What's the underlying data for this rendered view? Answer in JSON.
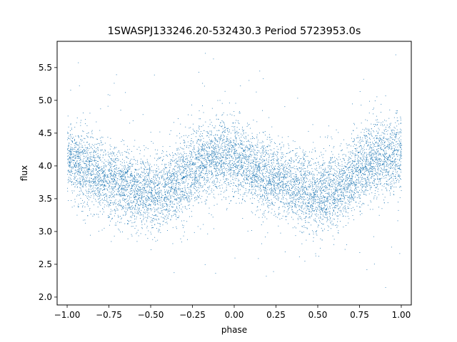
{
  "chart_data": {
    "type": "scatter",
    "title": "1SWASPJ133246.20-532430.3 Period 5723953.0s",
    "xlabel": "phase",
    "ylabel": "flux",
    "xlim": [
      -1.06,
      1.06
    ],
    "ylim": [
      1.88,
      5.9
    ],
    "xticks": [
      -1.0,
      -0.75,
      -0.5,
      -0.25,
      0.0,
      0.25,
      0.5,
      0.75,
      1.0
    ],
    "xtick_labels": [
      "−1.00",
      "−0.75",
      "−0.50",
      "−0.25",
      "0.00",
      "0.25",
      "0.50",
      "0.75",
      "1.00"
    ],
    "yticks": [
      2.0,
      2.5,
      3.0,
      3.5,
      4.0,
      4.5,
      5.0,
      5.5
    ],
    "ytick_labels": [
      "2.0",
      "2.5",
      "3.0",
      "3.5",
      "4.0",
      "4.5",
      "5.0",
      "5.5"
    ],
    "grid": false,
    "marker_color": "#1f77b4",
    "phase_range": [
      -1.0,
      1.0
    ],
    "mean_flux_profile": {
      "phase": [
        0.0,
        0.05,
        0.1,
        0.15,
        0.2,
        0.25,
        0.3,
        0.35,
        0.4,
        0.45,
        0.5,
        0.55,
        0.6,
        0.65,
        0.7,
        0.75,
        0.8,
        0.85,
        0.9,
        0.95,
        1.0
      ],
      "flux": [
        4.15,
        4.05,
        3.95,
        3.9,
        3.85,
        3.8,
        3.75,
        3.7,
        3.65,
        3.6,
        3.58,
        3.6,
        3.65,
        3.72,
        3.82,
        3.95,
        4.05,
        4.1,
        4.12,
        4.15,
        4.15
      ]
    },
    "scatter_sigma": 0.28,
    "approx_points": 30000,
    "outlier_range": [
      2.0,
      5.75
    ]
  }
}
